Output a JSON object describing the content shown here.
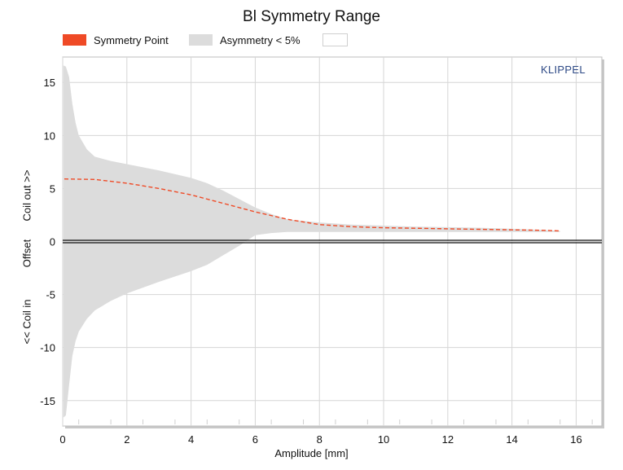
{
  "chart_data": {
    "type": "area",
    "title": "Bl Symmetry Range",
    "xlabel": "Amplitude [mm]",
    "ylabel_parts": [
      "<< Coil in",
      "Offset",
      "Coil out >>"
    ],
    "xlim": [
      0,
      16.8
    ],
    "ylim": [
      -17.4,
      17.4
    ],
    "xticks": [
      0,
      2,
      4,
      6,
      8,
      10,
      12,
      14,
      16
    ],
    "yticks": [
      -15,
      -10,
      -5,
      0,
      5,
      10,
      15
    ],
    "grid": true,
    "legend_position": "top",
    "legend": [
      {
        "label": "Symmetry Point",
        "color": "#ef4a26"
      },
      {
        "label": "Asymmetry < 5%",
        "color": "#dcdcdc"
      },
      {
        "label": "",
        "color": "#ffffff"
      }
    ],
    "watermark": "KLIPPEL",
    "series": [
      {
        "name": "Symmetry Point",
        "style": "dashed",
        "color": "#ef4a26",
        "x": [
          0.05,
          1,
          2,
          3,
          4,
          5,
          6,
          7,
          8,
          9,
          10,
          11,
          12,
          13,
          14,
          15,
          15.5
        ],
        "y": [
          5.9,
          5.85,
          5.5,
          5.0,
          4.4,
          3.6,
          2.8,
          2.1,
          1.6,
          1.4,
          1.3,
          1.25,
          1.2,
          1.15,
          1.1,
          1.05,
          1.0
        ]
      },
      {
        "name": "Asymmetry < 5%",
        "type": "band",
        "color": "#dcdcdc",
        "x": [
          0.02,
          0.1,
          0.2,
          0.3,
          0.4,
          0.5,
          0.75,
          1,
          1.5,
          2,
          3,
          4,
          4.5,
          5,
          5.5,
          6,
          6.5,
          7,
          8,
          9,
          10,
          11,
          12,
          13,
          14,
          15,
          15.5
        ],
        "upper": [
          16.6,
          16.5,
          15.5,
          13.0,
          11.2,
          10.0,
          8.7,
          8.0,
          7.6,
          7.3,
          6.7,
          6.0,
          5.5,
          4.8,
          4.0,
          3.2,
          2.6,
          2.1,
          1.8,
          1.6,
          1.5,
          1.4,
          1.35,
          1.3,
          1.2,
          1.1,
          1.0
        ],
        "lower": [
          -16.6,
          -16.4,
          -13.5,
          -10.8,
          -9.4,
          -8.5,
          -7.3,
          -6.5,
          -5.6,
          -4.9,
          -3.8,
          -2.8,
          -2.2,
          -1.3,
          -0.4,
          0.6,
          0.8,
          0.9,
          0.9,
          0.9,
          0.9,
          0.9,
          0.9,
          0.9,
          0.9,
          0.9,
          0.9
        ]
      }
    ]
  }
}
